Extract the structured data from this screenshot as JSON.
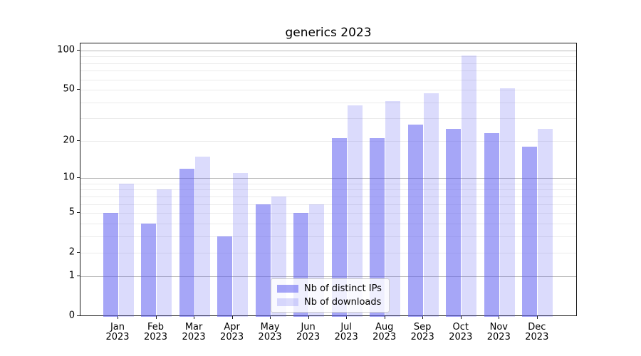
{
  "chart_data": {
    "type": "bar",
    "title": "generics 2023",
    "months": [
      "Jan",
      "Feb",
      "Mar",
      "Apr",
      "May",
      "Jun",
      "Jul",
      "Aug",
      "Sep",
      "Oct",
      "Nov",
      "Dec"
    ],
    "year_label": "2023",
    "categories": [
      "Jan 2023",
      "Feb 2023",
      "Mar 2023",
      "Apr 2023",
      "May 2023",
      "Jun 2023",
      "Jul 2023",
      "Aug 2023",
      "Sep 2023",
      "Oct 2023",
      "Nov 2023",
      "Dec 2023"
    ],
    "series": [
      {
        "name": "Nb of distinct IPs",
        "base_color": "#5c5cf0",
        "alpha": 0.55,
        "values": [
          5,
          4,
          12,
          3,
          6,
          5,
          21,
          21,
          27,
          25,
          23,
          18
        ]
      },
      {
        "name": "Nb of downloads",
        "base_color": "#5c5cf0",
        "alpha": 0.22,
        "values": [
          9,
          8,
          15,
          11,
          7,
          6,
          38,
          41,
          47,
          91,
          51,
          25
        ]
      }
    ],
    "y_axis": {
      "scale": "log1p",
      "tick_labels": [
        0,
        1,
        2,
        5,
        10,
        20,
        50,
        100
      ],
      "major_gridlines": [
        1,
        10,
        100
      ],
      "minor_gridlines": [
        2,
        3,
        4,
        5,
        6,
        7,
        8,
        9,
        20,
        30,
        40,
        50,
        60,
        70,
        80,
        90
      ],
      "ylim": [
        0,
        113
      ]
    },
    "legend_position": "lower center",
    "grid": true
  }
}
